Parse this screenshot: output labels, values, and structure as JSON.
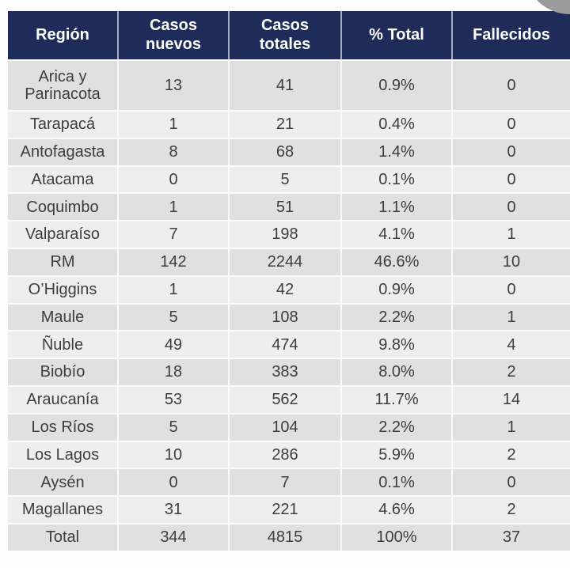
{
  "colors": {
    "page_bg": "#fdfdfd",
    "header_bg": "#1f2b58",
    "header_text": "#ffffff",
    "header_separator": "#a6aec6",
    "row_dark": "#e0e0e0",
    "row_light": "#eeeeee",
    "row_separator": "#fbfbfb",
    "cell_text": "#3d3d3d",
    "corner_circle": "#9b9b9b"
  },
  "table": {
    "headers": [
      {
        "label": "Región"
      },
      {
        "label": "Casos\nnuevos"
      },
      {
        "label": "Casos\ntotales"
      },
      {
        "label": "% Total"
      },
      {
        "label": "Fallecidos"
      }
    ],
    "rows": [
      {
        "cells": [
          "Arica y\nParinacota",
          "13",
          "41",
          "0.9%",
          "0"
        ]
      },
      {
        "cells": [
          "Tarapacá",
          "1",
          "21",
          "0.4%",
          "0"
        ]
      },
      {
        "cells": [
          "Antofagasta",
          "8",
          "68",
          "1.4%",
          "0"
        ]
      },
      {
        "cells": [
          "Atacama",
          "0",
          "5",
          "0.1%",
          "0"
        ]
      },
      {
        "cells": [
          "Coquimbo",
          "1",
          "51",
          "1.1%",
          "0"
        ]
      },
      {
        "cells": [
          "Valparaíso",
          "7",
          "198",
          "4.1%",
          "1"
        ]
      },
      {
        "cells": [
          "RM",
          "142",
          "2244",
          "46.6%",
          "10"
        ]
      },
      {
        "cells": [
          "O’Higgins",
          "1",
          "42",
          "0.9%",
          "0"
        ]
      },
      {
        "cells": [
          "Maule",
          "5",
          "108",
          "2.2%",
          "1"
        ]
      },
      {
        "cells": [
          "Ñuble",
          "49",
          "474",
          "9.8%",
          "4"
        ]
      },
      {
        "cells": [
          "Biobío",
          "18",
          "383",
          "8.0%",
          "2"
        ]
      },
      {
        "cells": [
          "Araucanía",
          "53",
          "562",
          "11.7%",
          "14"
        ]
      },
      {
        "cells": [
          "Los Ríos",
          "5",
          "104",
          "2.2%",
          "1"
        ]
      },
      {
        "cells": [
          "Los Lagos",
          "10",
          "286",
          "5.9%",
          "2"
        ]
      },
      {
        "cells": [
          "Aysén",
          "0",
          "7",
          "0.1%",
          "0"
        ]
      },
      {
        "cells": [
          "Magallanes",
          "31",
          "221",
          "4.6%",
          "2"
        ]
      },
      {
        "cells": [
          "Total",
          "344",
          "4815",
          "100%",
          "37"
        ]
      }
    ]
  },
  "chart_data": {
    "type": "table",
    "columns": [
      "Región",
      "Casos nuevos",
      "Casos totales",
      "% Total",
      "Fallecidos"
    ],
    "rows": [
      [
        "Arica y Parinacota",
        13,
        41,
        "0.9%",
        0
      ],
      [
        "Tarapacá",
        1,
        21,
        "0.4%",
        0
      ],
      [
        "Antofagasta",
        8,
        68,
        "1.4%",
        0
      ],
      [
        "Atacama",
        0,
        5,
        "0.1%",
        0
      ],
      [
        "Coquimbo",
        1,
        51,
        "1.1%",
        0
      ],
      [
        "Valparaíso",
        7,
        198,
        "4.1%",
        1
      ],
      [
        "RM",
        142,
        2244,
        "46.6%",
        10
      ],
      [
        "O’Higgins",
        1,
        42,
        "0.9%",
        0
      ],
      [
        "Maule",
        5,
        108,
        "2.2%",
        1
      ],
      [
        "Ñuble",
        49,
        474,
        "9.8%",
        4
      ],
      [
        "Biobío",
        18,
        383,
        "8.0%",
        2
      ],
      [
        "Araucanía",
        53,
        562,
        "11.7%",
        14
      ],
      [
        "Los Ríos",
        5,
        104,
        "2.2%",
        1
      ],
      [
        "Los Lagos",
        10,
        286,
        "5.9%",
        2
      ],
      [
        "Aysén",
        0,
        7,
        "0.1%",
        0
      ],
      [
        "Magallanes",
        31,
        221,
        "4.6%",
        2
      ],
      [
        "Total",
        344,
        4815,
        "100%",
        37
      ]
    ]
  }
}
